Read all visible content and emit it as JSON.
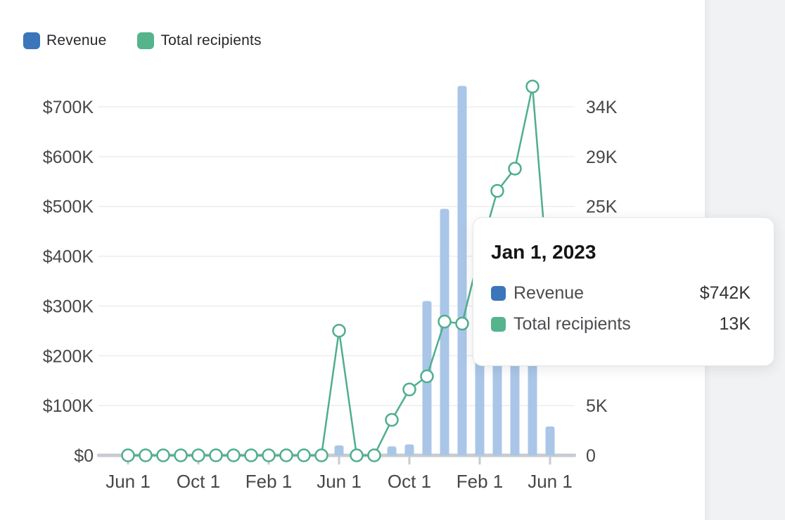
{
  "legend": {
    "items": [
      {
        "label": "Revenue",
        "color": "#3b76ba"
      },
      {
        "label": "Total recipients",
        "color": "#55b48c"
      }
    ]
  },
  "tooltip": {
    "title": "Jan 1, 2023",
    "rows": [
      {
        "label": "Revenue",
        "value": "$742K",
        "color": "#3b76ba"
      },
      {
        "label": "Total recipients",
        "value": "13K",
        "color": "#55b48c"
      }
    ]
  },
  "chart_data": {
    "type": "bar+line",
    "categories": [
      "Jun 2021",
      "Jul 2021",
      "Aug 2021",
      "Sep 2021",
      "Oct 2021",
      "Nov 2021",
      "Dec 2021",
      "Jan 2022",
      "Feb 2022",
      "Mar 2022",
      "Apr 2022",
      "May 2022",
      "Jun 2022",
      "Jul 2022",
      "Aug 2022",
      "Sep 2022",
      "Oct 2022",
      "Nov 2022",
      "Dec 2022",
      "Jan 2023",
      "Feb 2023",
      "Mar 2023",
      "Apr 2023",
      "May 2023",
      "Jun 2023"
    ],
    "series": [
      {
        "name": "Revenue",
        "chart": "bar",
        "axis": "left",
        "bar_color": "#a9c6e8",
        "values_usd_k": [
          0,
          0,
          0,
          0,
          0,
          0,
          0,
          0,
          0,
          0,
          0,
          0,
          20,
          0,
          0,
          18,
          22,
          310,
          495,
          742,
          420,
          380,
          330,
          260,
          58
        ]
      },
      {
        "name": "Total recipients",
        "chart": "line",
        "axis": "right",
        "line_color": "#4fae8d",
        "marker": "open-circle",
        "values_k": [
          0,
          0,
          0,
          0,
          0,
          0,
          0,
          0,
          0,
          0,
          0,
          0,
          12.3,
          0,
          0,
          3.5,
          6.5,
          7.8,
          13.2,
          13,
          20,
          26.1,
          28.3,
          36.4,
          15
        ]
      }
    ],
    "left_axis": {
      "ticks_usd_k": [
        0,
        100,
        200,
        300,
        400,
        500,
        600,
        700
      ],
      "tick_labels": [
        "$0",
        "$100K",
        "$200K",
        "$300K",
        "$400K",
        "$500K",
        "$600K",
        "$700K"
      ],
      "range_usd_k": [
        0,
        700
      ]
    },
    "right_axis": {
      "range_k": [
        0,
        34.4
      ],
      "visible_ticks": [
        {
          "label": "0",
          "at_left_usd_k": 0
        },
        {
          "label": "5K",
          "at_left_usd_k": 100
        },
        {
          "label": "25K",
          "at_left_usd_k": 500
        },
        {
          "label": "29K",
          "at_left_usd_k": 600
        },
        {
          "label": "34K",
          "at_left_usd_k": 700
        }
      ]
    },
    "x_axis": {
      "ticks": [
        {
          "label": "Jun 1",
          "month_index": 0
        },
        {
          "label": "Oct 1",
          "month_index": 4
        },
        {
          "label": "Feb 1",
          "month_index": 8
        },
        {
          "label": "Jun 1",
          "month_index": 12
        },
        {
          "label": "Oct 1",
          "month_index": 16
        },
        {
          "label": "Feb 1",
          "month_index": 20
        },
        {
          "label": "Jun 1",
          "month_index": 24
        }
      ]
    },
    "grid": "horizontal-only",
    "occluded_by_tooltip": {
      "bar_month_indices": [
        20,
        21,
        22,
        23
      ],
      "line_month_indices": [
        20,
        24
      ]
    },
    "colors": {
      "gridline": "#ededef",
      "baseline": "#c8cbd0",
      "axis_text": "#474747"
    }
  }
}
